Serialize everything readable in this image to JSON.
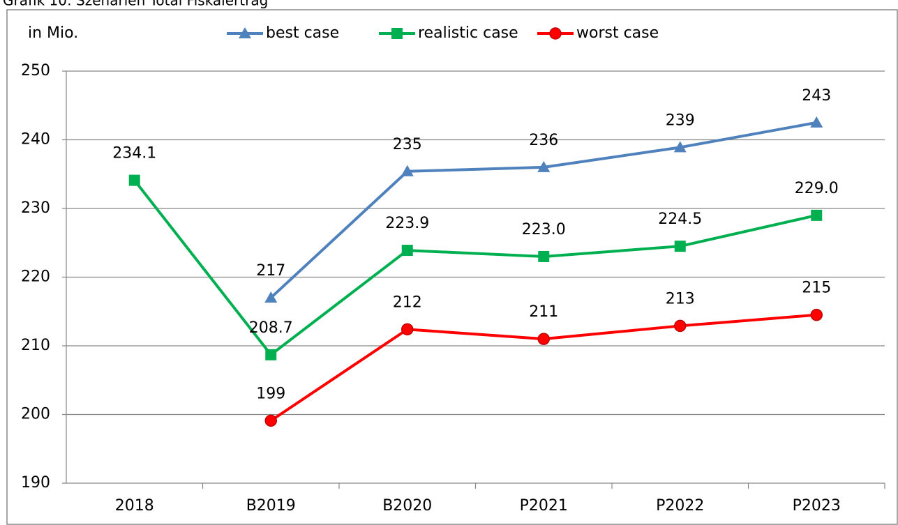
{
  "chart_data": {
    "type": "line",
    "title": "Grafik 10: Szenarien Total Fiskalertrag",
    "annotation": "in Mio.",
    "categories": [
      "2018",
      "B2019",
      "B2020",
      "P2021",
      "P2022",
      "P2023"
    ],
    "series": [
      {
        "name": "best case",
        "color": "#4f81bd",
        "marker": "triangle",
        "values": [
          null,
          217.0,
          235.4,
          236.0,
          238.9,
          242.5
        ],
        "value_labels": [
          null,
          "217",
          "235",
          "236",
          "239",
          "243"
        ]
      },
      {
        "name": "realistic case",
        "color": "#00b050",
        "marker": "square",
        "values": [
          234.1,
          208.7,
          223.9,
          223.0,
          224.5,
          229.0
        ],
        "value_labels": [
          "234.1",
          "208.7",
          "223.9",
          "223.0",
          "224.5",
          "229.0"
        ]
      },
      {
        "name": "worst case",
        "color": "#ff0000",
        "marker": "circle",
        "values": [
          null,
          199.1,
          212.4,
          211.0,
          212.9,
          214.5
        ],
        "value_labels": [
          null,
          "199",
          "212",
          "211",
          "213",
          "215"
        ]
      }
    ],
    "ylim": [
      190,
      250
    ],
    "yticks": [
      190,
      200,
      210,
      220,
      230,
      240,
      250
    ],
    "grid": true
  }
}
